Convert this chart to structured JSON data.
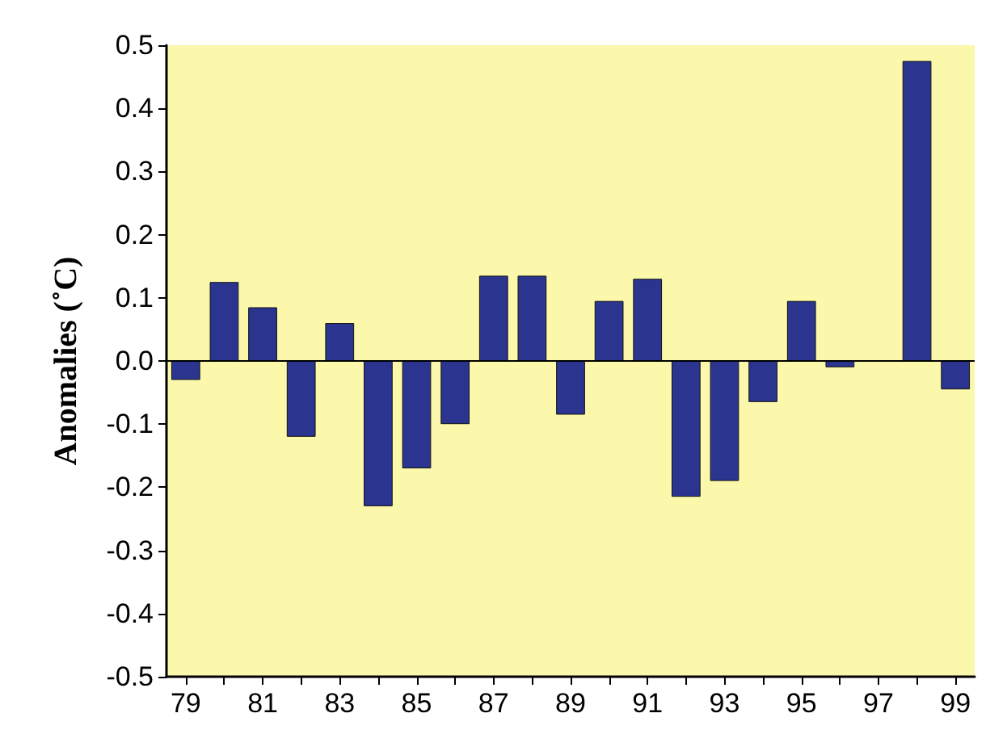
{
  "chart_data": {
    "type": "bar",
    "ylabel": "Anomalies (˚C)",
    "categories": [
      "79",
      null,
      "81",
      null,
      "83",
      null,
      "85",
      null,
      "87",
      null,
      "89",
      null,
      "91",
      null,
      "93",
      null,
      "95",
      null,
      "97",
      null,
      "99"
    ],
    "values": [
      -0.03,
      0.125,
      0.085,
      -0.12,
      0.06,
      -0.23,
      -0.17,
      -0.1,
      0.135,
      0.135,
      -0.085,
      0.095,
      0.13,
      -0.215,
      -0.19,
      -0.065,
      0.095,
      -0.01,
      null,
      0.475,
      -0.045
    ],
    "color": "#2b3590",
    "ylim": [
      -0.5,
      0.5
    ],
    "yticks": [
      -0.5,
      -0.4,
      -0.3,
      -0.2,
      -0.1,
      {
        "value": 0,
        "label": "0.0"
      },
      0.1,
      0.2,
      0.3,
      0.4,
      0.5
    ],
    "ref_lines": [
      {
        "axis": "y",
        "value": 0
      }
    ],
    "grid": false
  }
}
